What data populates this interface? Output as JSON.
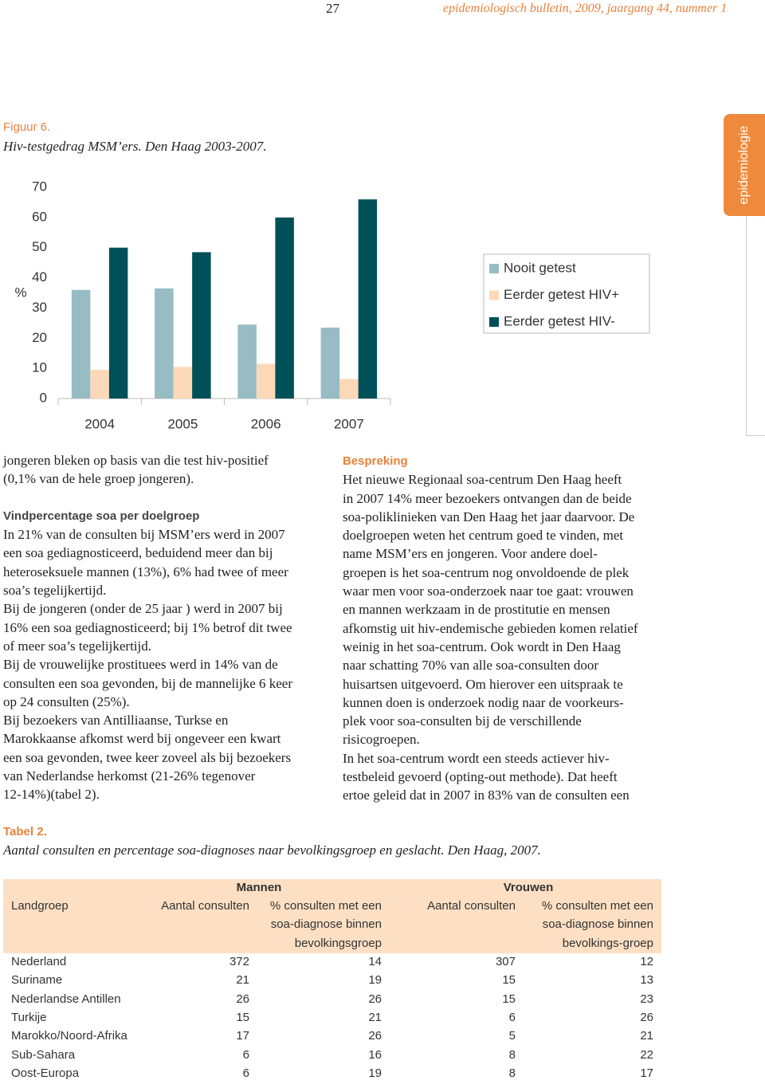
{
  "header": {
    "page_number": "27",
    "running_title": "epidemiologisch bulletin, 2009, jaargang 44, nummer 1",
    "section_tab": "epidemiologie"
  },
  "figure": {
    "label": "Figuur 6.",
    "caption": "Hiv-testgedrag MSM’ers. Den Haag 2003-2007."
  },
  "chart_data": {
    "type": "bar",
    "ylabel": "%",
    "categories": [
      "2004",
      "2005",
      "2006",
      "2007"
    ],
    "series": [
      {
        "name": "Nooit getest",
        "color": "#97bcc4",
        "values": [
          36,
          36.5,
          24.5,
          23.5
        ]
      },
      {
        "name": "Eerder getest HIV+",
        "color": "#fdd8b8",
        "values": [
          9.5,
          10.5,
          11.5,
          6.5
        ]
      },
      {
        "name": "Eerder getest HIV-",
        "color": "#00505a",
        "values": [
          50,
          48.5,
          60,
          66
        ]
      }
    ],
    "ylim": [
      0,
      70
    ],
    "yticks": [
      0,
      10,
      20,
      30,
      40,
      50,
      60,
      70
    ],
    "legend": "right"
  },
  "body": {
    "left": {
      "intro": [
        "jongeren bleken op basis van die test hiv-positief",
        "(0,1% van de hele groep jongeren)."
      ],
      "heading": "Vindpercentage soa per doelgroep",
      "paragraphs": [
        [
          "In 21% van de consulten bij MSM’ers werd in 2007",
          "een soa gediagnosticeerd, beduidend meer dan bij",
          "heteroseksuele mannen (13%), 6% had twee of meer",
          "soa’s tegelijkertijd."
        ],
        [
          "Bij de jongeren (onder de 25 jaar ) werd in 2007 bij",
          "16% een soa gediagnosticeerd; bij 1% betrof dit twee",
          "of meer soa’s tegelijkertijd."
        ],
        [
          "Bij de vrouwelijke prostituees werd in 14% van de",
          "consulten een soa gevonden, bij de mannelijke 6 keer",
          "op 24 consulten (25%)."
        ],
        [
          "Bij bezoekers van Antilliaanse, Turkse en",
          "Marokkaanse afkomst werd bij ongeveer een kwart",
          "een soa gevonden, twee keer zoveel als bij bezoekers",
          "van Nederlandse herkomst (21-26% tegenover",
          "12-14%)(tabel 2)."
        ]
      ]
    },
    "right": {
      "heading": "Bespreking",
      "paragraphs": [
        [
          "Het nieuwe Regionaal soa-centrum Den Haag heeft",
          "in 2007 14% meer bezoekers ontvangen dan de beide",
          "soa-poliklinieken van Den Haag het jaar daarvoor. De",
          "doelgroepen weten het centrum goed te vinden, met",
          "name MSM’ers en jongeren. Voor andere doel-",
          "groepen is het soa-centrum nog onvoldoende de plek",
          "waar men voor soa-onderzoek naar toe gaat: vrouwen",
          "en mannen werkzaam in de prostitutie en mensen",
          "afkomstig uit hiv-endemische gebieden komen relatief",
          "weinig in het soa-centrum. Ook wordt in Den Haag",
          "naar schatting 70% van alle soa-consulten door",
          "huisartsen uitgevoerd. Om hierover een uitspraak te",
          "kunnen doen is onderzoek nodig naar de voorkeurs-",
          "plek voor soa-consulten bij de verschillende",
          "risicogroepen."
        ],
        [
          "In het soa-centrum wordt een steeds actiever hiv-",
          "testbeleid gevoerd (opting-out methode). Dat heeft",
          "ertoe geleid dat in 2007 in 83% van de consulten een"
        ]
      ]
    }
  },
  "table": {
    "label": "Tabel 2.",
    "caption": "Aantal consulten en percentage soa-diagnoses naar bevolkingsgroep en geslacht. Den Haag, 2007.",
    "groups": [
      "Mannen",
      "Vrouwen"
    ],
    "columns": [
      [
        "Landgroep"
      ],
      [
        "Aantal consulten"
      ],
      [
        "% consulten met een",
        "soa-diagnose binnen",
        "bevolkingsgroep"
      ],
      [
        "Aantal consulten"
      ],
      [
        "% consulten met een",
        "soa-diagnose binnen",
        "bevolkings-groep"
      ]
    ],
    "rows": [
      [
        "Nederland",
        372,
        14,
        307,
        12
      ],
      [
        "Suriname",
        21,
        19,
        15,
        13
      ],
      [
        "Nederlandse Antillen",
        26,
        26,
        15,
        23
      ],
      [
        "Turkije",
        15,
        21,
        6,
        26
      ],
      [
        "Marokko/Noord-Afrika",
        17,
        26,
        5,
        21
      ],
      [
        "Sub-Sahara",
        6,
        16,
        8,
        22
      ],
      [
        "Oost-Europa",
        6,
        19,
        8,
        17
      ]
    ]
  }
}
